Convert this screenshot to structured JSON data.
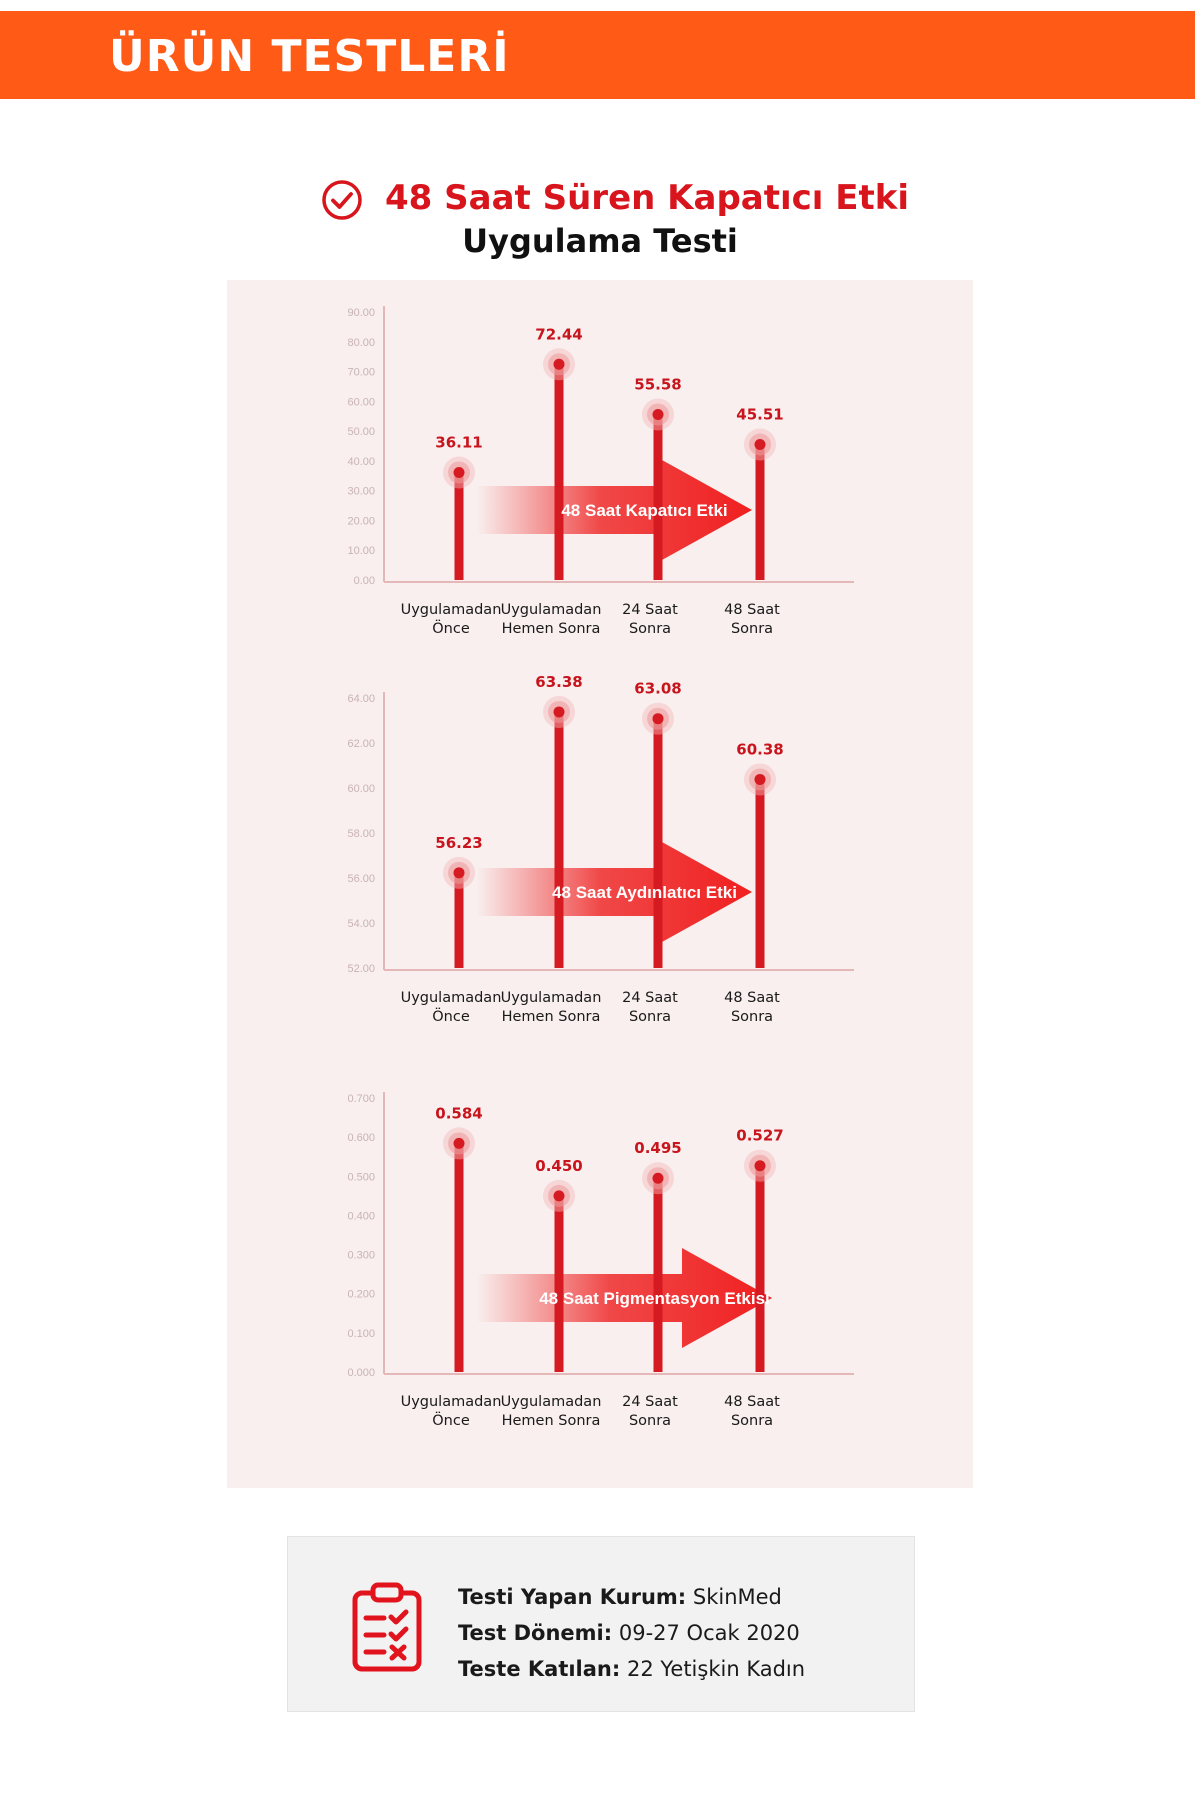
{
  "header": {
    "title": "ÜRÜN TESTLERİ"
  },
  "section": {
    "title_line1": "48 Saat Süren Kapatıcı Etki",
    "title_line2": "Uygulama Testi"
  },
  "colors": {
    "header_bg": "#ff5a16",
    "accent_red": "#d8141c",
    "bar": "#d61a22",
    "panel_bg": "#f8efee",
    "tick": "#c9b3b3"
  },
  "icons": {
    "title": "check-circle-icon",
    "info": "clipboard-checklist-icon"
  },
  "chart_data": [
    {
      "type": "bar",
      "categories": [
        [
          "Uygulamadan",
          "Önce"
        ],
        [
          "Uygulamadan",
          "Hemen Sonra"
        ],
        [
          "24 Saat",
          "Sonra"
        ],
        [
          "48 Saat",
          "Sonra"
        ]
      ],
      "values": [
        36.11,
        72.44,
        55.58,
        45.51
      ],
      "value_labels": [
        "36.11",
        "72.44",
        "55.58",
        "45.51"
      ],
      "ylim": [
        0,
        90
      ],
      "yticks": [
        "0.00",
        "10.00",
        "20.00",
        "30.00",
        "40.00",
        "50.00",
        "60.00",
        "70.00",
        "80.00",
        "90.00"
      ],
      "annotation": "48 Saat Kapatıcı Etki"
    },
    {
      "type": "bar",
      "categories": [
        [
          "Uygulamadan",
          "Önce"
        ],
        [
          "Uygulamadan",
          "Hemen Sonra"
        ],
        [
          "24 Saat",
          "Sonra"
        ],
        [
          "48 Saat",
          "Sonra"
        ]
      ],
      "values": [
        56.23,
        63.38,
        63.08,
        60.38
      ],
      "value_labels": [
        "56.23",
        "63.38",
        "63.08",
        "60.38"
      ],
      "ylim": [
        52,
        64
      ],
      "yticks": [
        "52.00",
        "54.00",
        "56.00",
        "58.00",
        "60.00",
        "62.00",
        "64.00"
      ],
      "annotation": "48 Saat Aydınlatıcı Etki"
    },
    {
      "type": "bar",
      "categories": [
        [
          "Uygulamadan",
          "Önce"
        ],
        [
          "Uygulamadan",
          "Hemen Sonra"
        ],
        [
          "24 Saat",
          "Sonra"
        ],
        [
          "48 Saat",
          "Sonra"
        ]
      ],
      "values": [
        0.584,
        0.45,
        0.495,
        0.527
      ],
      "value_labels": [
        "0.584",
        "0.450",
        "0.495",
        "0.527"
      ],
      "ylim": [
        0,
        0.7
      ],
      "yticks": [
        "0.000",
        "0.100",
        "0.200",
        "0.300",
        "0.400",
        "0.500",
        "0.600",
        "0.700"
      ],
      "annotation": "48 Saat Pigmentasyon Etkisi"
    }
  ],
  "info": {
    "org_label": "Testi Yapan Kurum:",
    "org_value": "SkinMed",
    "period_label": "Test Dönemi:",
    "period_value": "09-27 Ocak 2020",
    "participants_label": "Teste Katılan:",
    "participants_value": "22 Yetişkin Kadın"
  }
}
